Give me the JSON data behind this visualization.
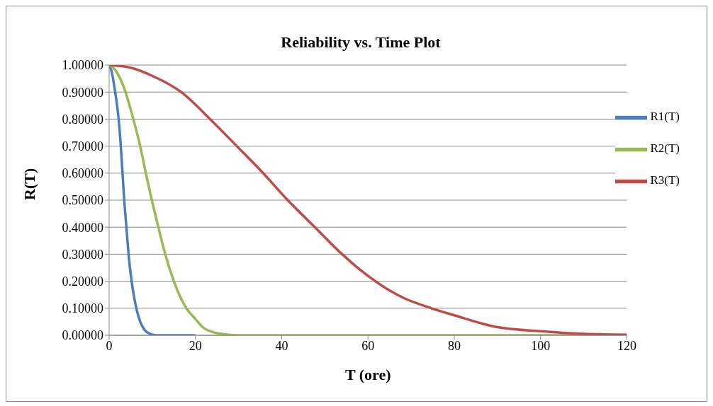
{
  "chart_data": {
    "type": "line",
    "title": "Reliability  vs. Time Plot",
    "xlabel": "T (ore)",
    "ylabel": "R(T)",
    "xlim": [
      0,
      120
    ],
    "xticks": [
      0,
      20,
      40,
      60,
      80,
      100,
      120
    ],
    "ylim": [
      0,
      1
    ],
    "yticks": [
      {
        "value": 0,
        "label": "0.00000"
      },
      {
        "value": 0.1,
        "label": "0.10000"
      },
      {
        "value": 0.2,
        "label": "0.20000"
      },
      {
        "value": 0.3,
        "label": "0.30000"
      },
      {
        "value": 0.4,
        "label": "0.40000"
      },
      {
        "value": 0.5,
        "label": "0.50000"
      },
      {
        "value": 0.6,
        "label": "0.60000"
      },
      {
        "value": 0.7,
        "label": "0.70000"
      },
      {
        "value": 0.8,
        "label": "0.80000"
      },
      {
        "value": 0.9,
        "label": "0.90000"
      },
      {
        "value": 1,
        "label": "1.00000"
      }
    ],
    "grid": "y",
    "legend": "right",
    "marker": "none",
    "line_style": "solid",
    "series": [
      {
        "name": "R1(T)",
        "color": "#4a7ebb",
        "x": [
          0,
          0.5,
          1.4,
          2.2,
          2.7,
          3.1,
          3.5,
          4,
          4.5,
          5.2,
          6.3,
          7.2,
          8.2,
          9.5,
          11,
          20
        ],
        "values": [
          1,
          0.98,
          0.9,
          0.8,
          0.7,
          0.6,
          0.5,
          0.4,
          0.3,
          0.2,
          0.1,
          0.05,
          0.02,
          0.005,
          0,
          0
        ]
      },
      {
        "name": "R2(T)",
        "color": "#98b954",
        "x": [
          0,
          1.5,
          3.8,
          5.6,
          7.2,
          8.5,
          9.9,
          11.4,
          13,
          15,
          17.9,
          20,
          21.7,
          24,
          26,
          30,
          40,
          60,
          80,
          100,
          120
        ],
        "values": [
          1,
          0.98,
          0.9,
          0.8,
          0.7,
          0.6,
          0.5,
          0.4,
          0.3,
          0.2,
          0.1,
          0.06,
          0.03,
          0.012,
          0.005,
          0,
          0,
          0,
          0,
          0,
          0
        ]
      },
      {
        "name": "R3(T)",
        "color": "#be4b48",
        "x": [
          0,
          5,
          10,
          16.7,
          23.4,
          29.6,
          35.7,
          41.4,
          47.7,
          54,
          61.7,
          68,
          74.7,
          80,
          90,
          100,
          110,
          120
        ],
        "values": [
          1,
          0.99,
          0.96,
          0.9,
          0.8,
          0.7,
          0.6,
          0.5,
          0.4,
          0.3,
          0.2,
          0.14,
          0.1,
          0.074,
          0.03,
          0.015,
          0.005,
          0.002
        ]
      }
    ]
  }
}
